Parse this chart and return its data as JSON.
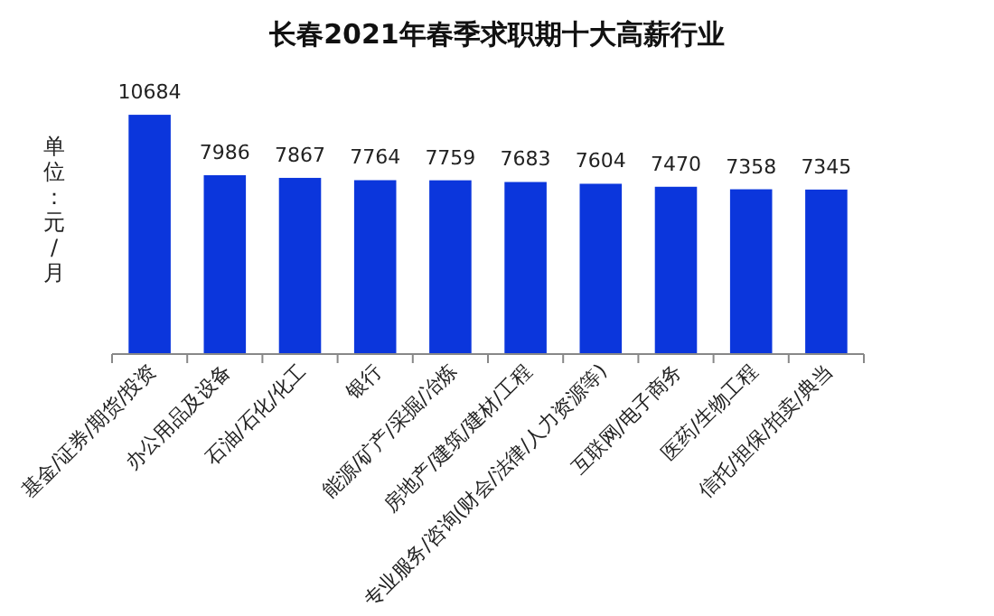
{
  "chart_data": {
    "type": "bar",
    "title": "长春2021年春季求职期十大高薪行业",
    "ylabel": "单位：元/月",
    "categories": [
      "基金/证券/期货/投资",
      "办公用品及设备",
      "石油/石化/化工",
      "银行",
      "能源/矿产/采掘/冶炼",
      "房地产/建筑/建材/工程",
      "专业服务/咨询(财会/法律/人力资源等)",
      "互联网/电子商务",
      "医药/生物工程",
      "信托/担保/拍卖/典当"
    ],
    "series": [
      {
        "color": "#0b36dc",
        "values": [
          10684,
          7986,
          7867,
          7764,
          7759,
          7683,
          7604,
          7470,
          7358,
          7345
        ]
      }
    ],
    "data_labels": true
  }
}
